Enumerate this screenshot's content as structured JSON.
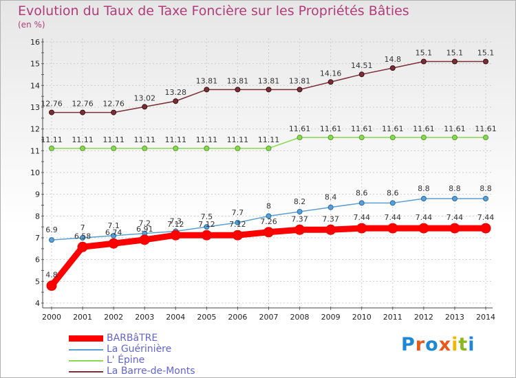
{
  "title": "Evolution du Taux de Taxe Foncière sur les Propriétés Bâties",
  "unit": "(en %)",
  "logo": {
    "text": "Proxiti",
    "colors": [
      "#1e88d4",
      "#e8581c",
      "#1e88d4",
      "#e8581c",
      "#f0b800",
      "#8ab81e",
      "#1e88d4"
    ]
  },
  "chart_data": {
    "type": "line",
    "title": "Evolution du Taux de Taxe Foncière sur les Propriétés Bâties",
    "ylabel": "(en %)",
    "ylim": [
      4,
      16
    ],
    "yticks": [
      "4",
      "5",
      "6",
      "7",
      "8",
      "9",
      "10",
      "11",
      "12",
      "13",
      "14",
      "15",
      "16"
    ],
    "categories": [
      "2000",
      "2001",
      "2002",
      "2003",
      "2004",
      "2005",
      "2006",
      "2007",
      "2008",
      "2009",
      "2010",
      "2011",
      "2012",
      "2013",
      "2014"
    ],
    "series": [
      {
        "name": "La Barre-de-Monts",
        "color": "#7a2e35",
        "values": [
          12.76,
          12.76,
          12.76,
          13.02,
          13.28,
          13.81,
          13.81,
          13.81,
          13.81,
          14.16,
          14.51,
          14.8,
          15.1,
          15.1,
          15.1
        ],
        "labels": [
          "12.76",
          "12.76",
          "12.76",
          "13.02",
          "13.28",
          "13.81",
          "13.81",
          "13.81",
          "13.81",
          "14.16",
          "14.51",
          "14.8",
          "15.1",
          "15.1",
          "15.1"
        ]
      },
      {
        "name": "L' Épine",
        "color": "#88d850",
        "values": [
          11.11,
          11.11,
          11.11,
          11.11,
          11.11,
          11.11,
          11.11,
          11.11,
          11.61,
          11.61,
          11.61,
          11.61,
          11.61,
          11.61,
          11.61
        ],
        "labels": [
          "11.11",
          "11.11",
          "11.11",
          "11.11",
          "11.11",
          "11.11",
          "11.11",
          "11.11",
          "11.61",
          "11.61",
          "11.61",
          "11.61",
          "11.61",
          "11.61",
          "11.61"
        ]
      },
      {
        "name": "La Guérinière",
        "color": "#5a9fd4",
        "values": [
          6.9,
          7.0,
          7.1,
          7.2,
          7.3,
          7.5,
          7.7,
          8.0,
          8.2,
          8.4,
          8.6,
          8.6,
          8.8,
          8.8,
          8.8
        ],
        "labels": [
          "6.9",
          "7",
          "7.1",
          "7.2",
          "7.3",
          "7.5",
          "7.7",
          "8",
          "8.2",
          "8.4",
          "8.6",
          "8.6",
          "8.8",
          "8.8",
          "8.8"
        ]
      },
      {
        "name": "BARBâTRE",
        "color": "#ff0000",
        "values": [
          4.8,
          6.58,
          6.74,
          6.91,
          7.12,
          7.12,
          7.12,
          7.26,
          7.37,
          7.37,
          7.44,
          7.44,
          7.44,
          7.44,
          7.44
        ],
        "labels": [
          "4.8",
          "6.58",
          "6.74",
          "6.91",
          "7.12",
          "7.12",
          "7.12",
          "7.26",
          "7.37",
          "7.37",
          "7.44",
          "7.44",
          "7.44",
          "7.44",
          "7.44"
        ]
      }
    ],
    "legend_order": [
      "BARBâTRE",
      "La Guérinière",
      "L' Épine",
      "La Barre-de-Monts"
    ]
  }
}
